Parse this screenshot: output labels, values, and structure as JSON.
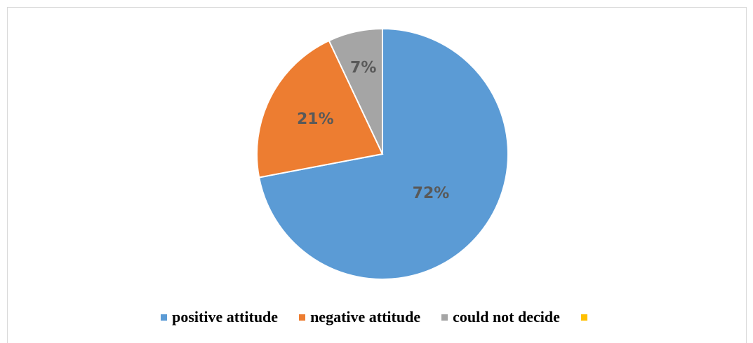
{
  "chart_data": {
    "type": "pie",
    "title": "",
    "series": [
      {
        "values": [
          72,
          21,
          7,
          0
        ],
        "labels": [
          "positive attitude",
          "negative attitude",
          "could not decide",
          ""
        ],
        "data_labels": [
          "72%",
          "21%",
          "7%",
          ""
        ],
        "colors": [
          "#5b9bd5",
          "#ed7d31",
          "#a5a5a5",
          "#ffc000"
        ]
      }
    ],
    "legend_position": "bottom",
    "start_angle": "top, clockwise"
  }
}
